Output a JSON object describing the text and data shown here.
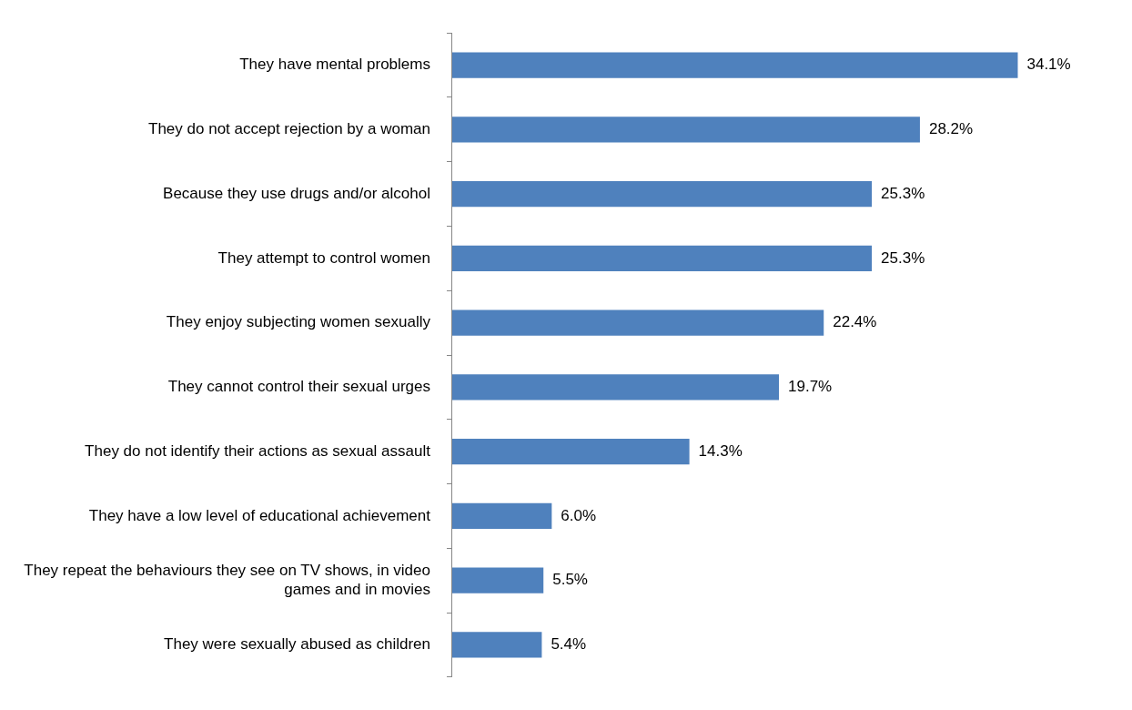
{
  "chart_data": {
    "type": "bar",
    "orientation": "horizontal",
    "categories": [
      "They have mental problems",
      "They do not accept rejection by a woman",
      "Because they use drugs and/or alcohol",
      "They attempt to control women",
      "They enjoy subjecting women sexually",
      "They cannot control their sexual urges",
      "They do not identify their actions as sexual assault",
      "They have a low level of educational achievement",
      "They repeat the behaviours they see on TV shows, in video games and in movies",
      "They were sexually abused as children"
    ],
    "values": [
      34.1,
      28.2,
      25.3,
      25.3,
      22.4,
      19.7,
      14.3,
      6.0,
      5.5,
      5.4
    ],
    "value_labels": [
      "34.1%",
      "28.2%",
      "25.3%",
      "25.3%",
      "22.4%",
      "19.7%",
      "14.3%",
      "6.0%",
      "5.5%",
      "5.4%"
    ],
    "color": "#4f81bd",
    "tick_labels": "y",
    "legend": false
  }
}
